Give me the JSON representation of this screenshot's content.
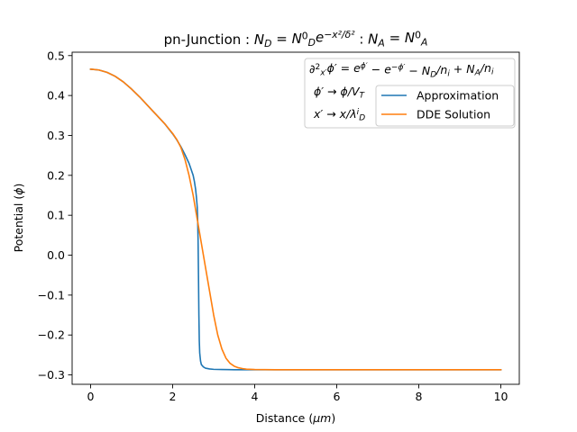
{
  "chart_data": {
    "type": "line",
    "title_parts": [
      {
        "t": "pn-Junction : "
      },
      {
        "t": "N",
        "i": 1
      },
      {
        "t": "D",
        "i": 1,
        "sub": 1
      },
      {
        "t": " = "
      },
      {
        "t": "N",
        "i": 1
      },
      {
        "t": "0",
        "sup": 1
      },
      {
        "t": "D",
        "i": 1,
        "sub": 1
      },
      {
        "t": "e",
        "i": 1
      },
      {
        "t": "−x²/δ²",
        "i": 1,
        "sup": 1
      },
      {
        "t": " : "
      },
      {
        "t": "N",
        "i": 1
      },
      {
        "t": "A",
        "i": 1,
        "sub": 1
      },
      {
        "t": " = "
      },
      {
        "t": "N",
        "i": 1
      },
      {
        "t": "0",
        "sup": 1
      },
      {
        "t": "A",
        "i": 1,
        "sub": 1
      }
    ],
    "xlabel_parts": [
      {
        "t": "Distance ("
      },
      {
        "t": "μm",
        "i": 1
      },
      {
        "t": ")"
      }
    ],
    "ylabel_parts": [
      {
        "t": "Potential ("
      },
      {
        "t": "ϕ",
        "i": 1
      },
      {
        "t": ")"
      }
    ],
    "annotation_lines": [
      [
        {
          "t": "∂",
          "i": 1
        },
        {
          "t": "2",
          "sup": 1
        },
        {
          "t": "x′",
          "i": 1,
          "sub": 1
        },
        {
          "t": "ϕ′ = ",
          "i": 1
        },
        {
          "t": "e",
          "i": 1
        },
        {
          "t": "ϕ′",
          "i": 1,
          "sup": 1
        },
        {
          "t": " − "
        },
        {
          "t": "e",
          "i": 1
        },
        {
          "t": "−ϕ′",
          "i": 1,
          "sup": 1
        },
        {
          "t": " − "
        },
        {
          "t": "N",
          "i": 1
        },
        {
          "t": "D",
          "i": 1,
          "sub": 1
        },
        {
          "t": "/",
          "i": 1
        },
        {
          "t": "n",
          "i": 1
        },
        {
          "t": "i",
          "i": 1,
          "sub": 1
        },
        {
          "t": " + "
        },
        {
          "t": "N",
          "i": 1
        },
        {
          "t": "A",
          "i": 1,
          "sub": 1
        },
        {
          "t": "/",
          "i": 1
        },
        {
          "t": "n",
          "i": 1
        },
        {
          "t": "i",
          "i": 1,
          "sub": 1
        }
      ],
      [
        {
          "t": "ϕ′ → ϕ/V",
          "i": 1
        },
        {
          "t": "T",
          "i": 1,
          "sub": 1
        }
      ],
      [
        {
          "t": "x′ → x/λ",
          "i": 1
        },
        {
          "t": "i",
          "i": 1,
          "sup": 1
        },
        {
          "t": "D",
          "i": 1,
          "sub": 1
        }
      ]
    ],
    "xlim": [
      -0.45,
      10.45
    ],
    "ylim": [
      -0.3235,
      0.5085
    ],
    "xticks": [
      0,
      2,
      4,
      6,
      8,
      10
    ],
    "xtick_labels": [
      "0",
      "2",
      "4",
      "6",
      "8",
      "10"
    ],
    "yticks": [
      -0.3,
      -0.2,
      -0.1,
      0.0,
      0.1,
      0.2,
      0.3,
      0.4,
      0.5
    ],
    "ytick_labels": [
      "−0.3",
      "−0.2",
      "−0.1",
      "0.0",
      "0.1",
      "0.2",
      "0.3",
      "0.4",
      "0.5"
    ],
    "grid": false,
    "legend_position": "upper-right",
    "series": [
      {
        "name": "Approximation",
        "color": "#1f77b4",
        "x": [
          0,
          0.2,
          0.4,
          0.6,
          0.8,
          1.0,
          1.2,
          1.4,
          1.6,
          1.8,
          2.0,
          2.1,
          2.2,
          2.3,
          2.4,
          2.45,
          2.5,
          2.53,
          2.56,
          2.58,
          2.6,
          2.61,
          2.62,
          2.63,
          2.64,
          2.65,
          2.66,
          2.68,
          2.7,
          2.75,
          2.8,
          2.9,
          3.0,
          3.2,
          3.5,
          4.0,
          5.0,
          6.0,
          8.0,
          10.0
        ],
        "y": [
          0.466,
          0.464,
          0.458,
          0.448,
          0.434,
          0.416,
          0.396,
          0.374,
          0.352,
          0.33,
          0.304,
          0.289,
          0.272,
          0.252,
          0.23,
          0.215,
          0.2,
          0.185,
          0.165,
          0.145,
          0.12,
          0.09,
          0.04,
          -0.05,
          -0.15,
          -0.215,
          -0.245,
          -0.265,
          -0.274,
          -0.28,
          -0.283,
          -0.285,
          -0.286,
          -0.2865,
          -0.287,
          -0.287,
          -0.287,
          -0.287,
          -0.287,
          -0.287
        ]
      },
      {
        "name": "DDE Solution",
        "color": "#ff7f0e",
        "x": [
          0,
          0.2,
          0.4,
          0.6,
          0.8,
          1.0,
          1.2,
          1.4,
          1.6,
          1.8,
          2.0,
          2.1,
          2.2,
          2.3,
          2.4,
          2.5,
          2.6,
          2.7,
          2.8,
          2.9,
          3.0,
          3.1,
          3.2,
          3.3,
          3.4,
          3.5,
          3.6,
          3.7,
          3.8,
          4.0,
          4.5,
          5.0,
          6.0,
          8.0,
          10.0
        ],
        "y": [
          0.466,
          0.464,
          0.458,
          0.448,
          0.434,
          0.416,
          0.396,
          0.374,
          0.352,
          0.33,
          0.305,
          0.29,
          0.27,
          0.24,
          0.2,
          0.15,
          0.09,
          0.03,
          -0.03,
          -0.09,
          -0.15,
          -0.2,
          -0.235,
          -0.258,
          -0.271,
          -0.278,
          -0.282,
          -0.284,
          -0.2855,
          -0.2865,
          -0.287,
          -0.287,
          -0.287,
          -0.287,
          -0.287
        ]
      }
    ]
  }
}
